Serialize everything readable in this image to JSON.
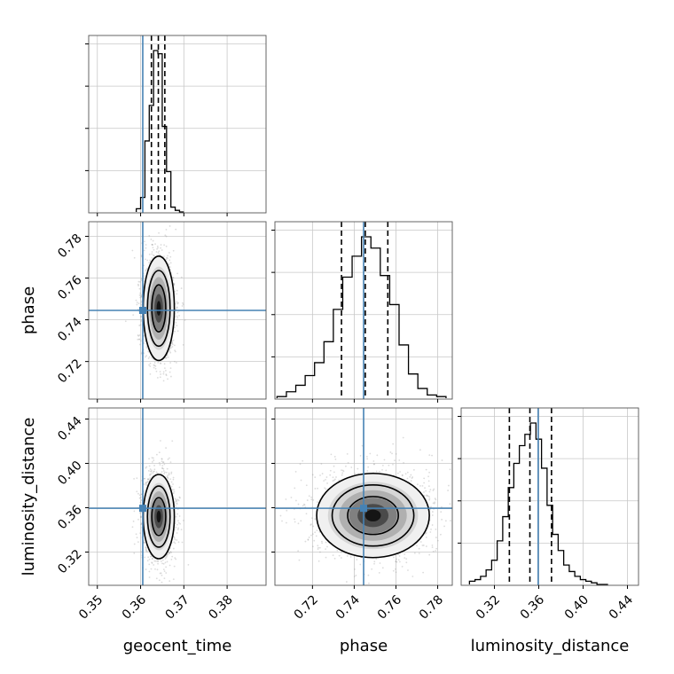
{
  "chart_data": {
    "type": "corner",
    "parameters": [
      "geocent_time",
      "phase",
      "luminosity_distance"
    ],
    "axis_labels": {
      "geocent_time": "geocent_time",
      "phase": "phase",
      "luminosity_distance": "luminosity_distance"
    },
    "ranges": {
      "geocent_time": [
        0.348,
        0.389
      ],
      "phase": [
        0.702,
        0.787
      ],
      "luminosity_distance": [
        0.29,
        0.45
      ]
    },
    "ticks": {
      "geocent_time": [
        {
          "value": 0.35,
          "label": "0.35"
        },
        {
          "value": 0.36,
          "label": "0.36"
        },
        {
          "value": 0.37,
          "label": "0.37"
        },
        {
          "value": 0.38,
          "label": "0.38"
        }
      ],
      "phase": [
        {
          "value": 0.72,
          "label": "0.72"
        },
        {
          "value": 0.74,
          "label": "0.74"
        },
        {
          "value": 0.76,
          "label": "0.76"
        },
        {
          "value": 0.78,
          "label": "0.78"
        }
      ],
      "luminosity_distance": [
        {
          "value": 0.32,
          "label": "0.32"
        },
        {
          "value": 0.36,
          "label": "0.36"
        },
        {
          "value": 0.4,
          "label": "0.40"
        },
        {
          "value": 0.44,
          "label": "0.44"
        }
      ]
    },
    "truths": {
      "geocent_time": 0.3605,
      "phase": 0.7445,
      "luminosity_distance": 0.3595
    },
    "truth_color": "#4682b4",
    "histogram_color": "#000000",
    "grid": true,
    "histograms": {
      "geocent_time": {
        "edges": [
          0.359,
          0.36,
          0.361,
          0.362,
          0.363,
          0.364,
          0.365,
          0.366,
          0.367,
          0.368,
          0.369,
          0.37
        ],
        "counts": [
          0.02,
          0.09,
          0.44,
          0.66,
          1.0,
          0.98,
          0.53,
          0.25,
          0.03,
          0.01,
          0.0
        ],
        "quantiles": [
          0.3625,
          0.3641,
          0.3656
        ]
      },
      "phase": {
        "edges": [
          0.703,
          0.7075,
          0.712,
          0.7165,
          0.721,
          0.7255,
          0.73,
          0.7345,
          0.739,
          0.7435,
          0.748,
          0.7525,
          0.757,
          0.7615,
          0.766,
          0.7705,
          0.775,
          0.7795,
          0.784
        ],
        "counts": [
          0.01,
          0.04,
          0.08,
          0.14,
          0.22,
          0.35,
          0.55,
          0.75,
          0.88,
          1.0,
          0.93,
          0.76,
          0.58,
          0.33,
          0.15,
          0.06,
          0.02,
          0.01
        ],
        "quantiles": [
          0.7339,
          0.7453,
          0.7561
        ]
      },
      "luminosity_distance": {
        "edges": [
          0.2975,
          0.3025,
          0.3075,
          0.3125,
          0.3175,
          0.3225,
          0.3275,
          0.3325,
          0.3375,
          0.3425,
          0.3475,
          0.3525,
          0.3575,
          0.3625,
          0.3675,
          0.3725,
          0.3775,
          0.3825,
          0.3875,
          0.3925,
          0.3975,
          0.4025,
          0.4075,
          0.4125,
          0.4175,
          0.4225
        ],
        "counts": [
          0.02,
          0.03,
          0.05,
          0.09,
          0.15,
          0.27,
          0.42,
          0.6,
          0.75,
          0.86,
          0.93,
          1.0,
          0.9,
          0.72,
          0.49,
          0.31,
          0.21,
          0.12,
          0.08,
          0.05,
          0.03,
          0.02,
          0.01,
          0.0,
          0.0
        ],
        "quantiles": [
          0.3335,
          0.352,
          0.3715
        ]
      }
    },
    "pairs": [
      {
        "x": "geocent_time",
        "y": "phase",
        "center": [
          0.3642,
          0.7455
        ],
        "sigma": [
          0.0018,
          0.0125
        ],
        "rho": 0.0
      },
      {
        "x": "geocent_time",
        "y": "luminosity_distance",
        "center": [
          0.3642,
          0.352
        ],
        "sigma": [
          0.0018,
          0.019
        ],
        "rho": 0.0
      },
      {
        "x": "phase",
        "y": "luminosity_distance",
        "center": [
          0.749,
          0.353
        ],
        "sigma": [
          0.0135,
          0.019
        ],
        "rho": 0.0
      }
    ],
    "contour_levels": [
      0.39,
      0.86,
      1.0
    ]
  }
}
